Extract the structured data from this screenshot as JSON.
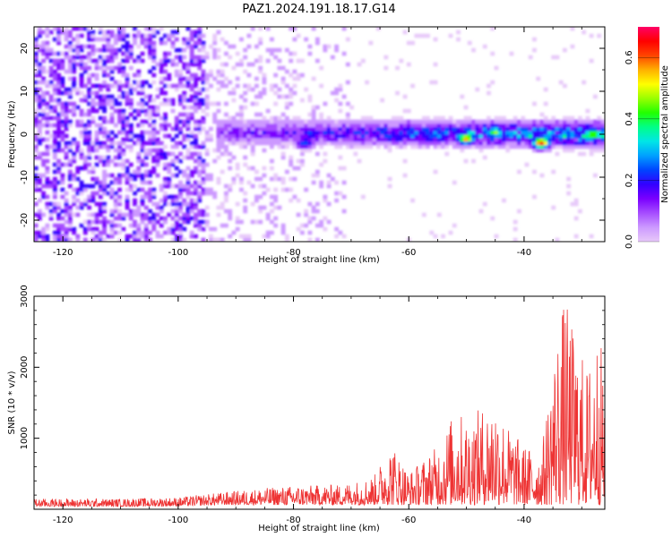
{
  "title": "PAZ1.2024.191.18.17.G14",
  "chart_data": [
    {
      "type": "heatmap",
      "xlabel": "Height of straight line (km)",
      "ylabel": "Frequency (Hz)",
      "xlim": [
        -125,
        -26
      ],
      "ylim": [
        -25,
        25
      ],
      "xticks": [
        -120,
        -100,
        -80,
        -60,
        -40
      ],
      "yticks": [
        -20,
        -10,
        0,
        10,
        20
      ],
      "colorbar": {
        "label": "Normalized spectral amplitude",
        "range": [
          0,
          0.7
        ],
        "ticks": [
          0.0,
          0.2,
          0.4,
          0.6
        ],
        "colormap": "gist_rainbow_r",
        "colors": [
          "#e7c9f9",
          "#cc99ff",
          "#a64dff",
          "#7a00ff",
          "#3300ff",
          "#0044ff",
          "#00a0ff",
          "#00e6e6",
          "#00ff88",
          "#22ff00",
          "#99ff00",
          "#ffff00",
          "#ffb000",
          "#ff4400",
          "#ff0000",
          "#ff0066"
        ]
      },
      "signal_band": {
        "x_start": -93,
        "x_end": -26,
        "center_freq_start": 0.5,
        "center_freq_end": 0.0,
        "peak_points": [
          {
            "x": -50,
            "y": -1,
            "value": 0.55
          },
          {
            "x": -37,
            "y": -2,
            "value": 0.62
          },
          {
            "x": -28,
            "y": 0,
            "value": 0.5
          },
          {
            "x": -45,
            "y": 0.5,
            "value": 0.45
          },
          {
            "x": -78,
            "y": -2,
            "value": 0.25
          }
        ]
      },
      "noise_region": {
        "x_start": -125,
        "x_end": -95,
        "level": 0.1
      }
    },
    {
      "type": "line",
      "xlabel": "Height of straight line (km)",
      "ylabel": "SNR (10 * v/v)",
      "xlim": [
        -125,
        -26
      ],
      "ylim": [
        0,
        3000
      ],
      "xticks": [
        -120,
        -100,
        -80,
        -60,
        -40
      ],
      "yticks": [
        1000,
        2000,
        3000
      ],
      "series": [
        {
          "color": "#ee3333",
          "envelope": [
            {
              "x": -125,
              "max": 150
            },
            {
              "x": -110,
              "max": 150
            },
            {
              "x": -100,
              "max": 170
            },
            {
              "x": -90,
              "max": 260
            },
            {
              "x": -85,
              "max": 300
            },
            {
              "x": -80,
              "max": 330
            },
            {
              "x": -72,
              "max": 350
            },
            {
              "x": -68,
              "max": 420
            },
            {
              "x": -66,
              "max": 480
            },
            {
              "x": -63,
              "max": 950
            },
            {
              "x": -60,
              "max": 520
            },
            {
              "x": -57,
              "max": 750
            },
            {
              "x": -55,
              "max": 900
            },
            {
              "x": -52,
              "max": 1400
            },
            {
              "x": -50,
              "max": 1300
            },
            {
              "x": -47,
              "max": 1450
            },
            {
              "x": -45,
              "max": 1600
            },
            {
              "x": -43,
              "max": 1200
            },
            {
              "x": -40,
              "max": 900
            },
            {
              "x": -37,
              "max": 800
            },
            {
              "x": -35,
              "max": 2100
            },
            {
              "x": -34,
              "max": 2600
            },
            {
              "x": -33,
              "max": 3000
            },
            {
              "x": -31,
              "max": 2400
            },
            {
              "x": -29,
              "max": 2000
            },
            {
              "x": -27,
              "max": 2600
            },
            {
              "x": -26,
              "max": 1800
            }
          ]
        }
      ]
    }
  ]
}
